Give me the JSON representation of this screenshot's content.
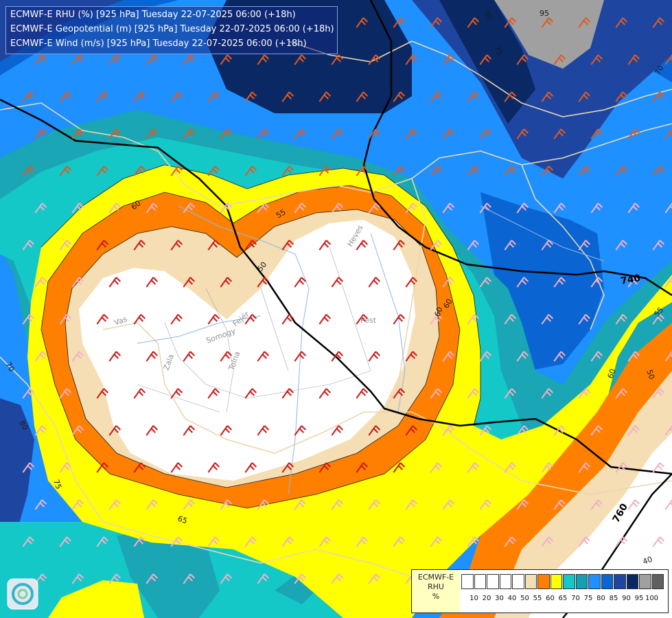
{
  "titles": [
    "ECMWF-E RHU (%) [925 hPa] Tuesday 22-07-2025 06:00 (+18h)",
    "ECMWF-E Geopotential (m) [925 hPa] Tuesday 22-07-2025 06:00 (+18h)",
    "ECMWF-E Wind (m/s) [925 hPa] Tuesday 22-07-2025 06:00 (+18h)"
  ],
  "legend": {
    "model": "ECMWF-E",
    "variable": "RHU",
    "unit": "%",
    "levels": [
      "10",
      "20",
      "30",
      "40",
      "50",
      "55",
      "60",
      "65",
      "70",
      "75",
      "80",
      "85",
      "90",
      "95",
      "100"
    ],
    "colors": [
      "#ffffff",
      "#ffffff",
      "#ffffff",
      "#ffffff",
      "#ffffff",
      "#f5deb3",
      "#ff8000",
      "#ffff00",
      "#14c8c8",
      "#14a0b4",
      "#1e90ff",
      "#0a64d2",
      "#1e46a0",
      "#0a2864",
      "#a0a0a0",
      "#606060"
    ]
  },
  "colors": {
    "rh_50": "#ffffff",
    "rh_55": "#f5deb3",
    "rh_60": "#ff8000",
    "rh_65": "#ffff00",
    "rh_70": "#14c8c8",
    "rh_75": "#1aa6b4",
    "rh_80": "#1e90ff",
    "rh_85": "#0a64d2",
    "rh_90": "#1e46a0",
    "rh_95": "#0a2864",
    "rh_100": "#a0a0a0",
    "border": "#e8d8b0",
    "rivers": "#8ab8e6",
    "geopotential": "#000000"
  },
  "contour_labels": [
    "90",
    "95",
    "70",
    "75",
    "60",
    "55",
    "50",
    "60",
    "60",
    "50",
    "70",
    "80",
    "75",
    "65",
    "55",
    "40",
    "60"
  ],
  "geopotential_labels": [
    "740",
    "760"
  ],
  "place_labels": [
    "Pest",
    "Vas",
    "Zala",
    "Somogy",
    "Fejér",
    "Tolna",
    "Heves"
  ]
}
